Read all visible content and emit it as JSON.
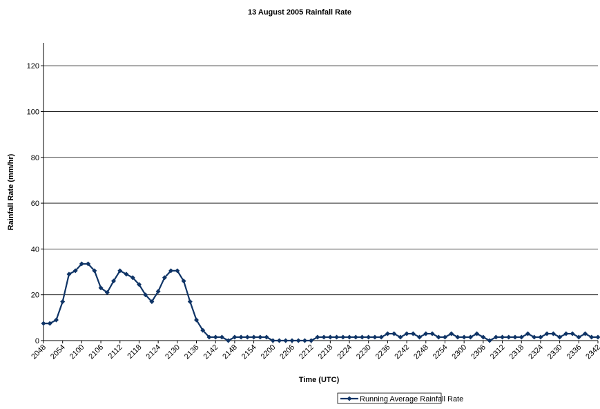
{
  "chart_data": {
    "type": "line",
    "title": "13 August 2005 Rainfall Rate",
    "x_label": "Time (UTC)",
    "y_label": "Rainfall Rate (mm/hr)",
    "categories": [
      "2048",
      null,
      null,
      "2054",
      null,
      null,
      "2100",
      null,
      null,
      "2106",
      null,
      null,
      "2112",
      null,
      null,
      "2118",
      null,
      null,
      "2124",
      null,
      null,
      "2130",
      null,
      null,
      "2136",
      null,
      null,
      "2142",
      null,
      null,
      "2148",
      null,
      null,
      "2154",
      null,
      null,
      "2200",
      null,
      null,
      "2206",
      null,
      null,
      "2212",
      null,
      null,
      "2218",
      null,
      null,
      "2224",
      null,
      null,
      "2230",
      null,
      null,
      "2236",
      null,
      null,
      "2242",
      null,
      null,
      "2248",
      null,
      null,
      "2254",
      null,
      null,
      "2300",
      null,
      null,
      "2306",
      null,
      null,
      "2312",
      null,
      null,
      "2318",
      null,
      null,
      "2324",
      null,
      null,
      "2330",
      null,
      null,
      "2336",
      null,
      null,
      "2342"
    ],
    "series": [
      {
        "name": "Running Average Rainfall Rate",
        "color": "#0f3466",
        "values": [
          7.5,
          7.5,
          9,
          17,
          29,
          30.5,
          33.5,
          33.5,
          30.5,
          23,
          21,
          26,
          30.5,
          29,
          27.5,
          24.5,
          20,
          17,
          21.5,
          27.5,
          30.5,
          30.5,
          26,
          17,
          9,
          4.5,
          1.5,
          1.5,
          1.5,
          0,
          1.5,
          1.5,
          1.5,
          1.5,
          1.5,
          1.5,
          0,
          0,
          0,
          0,
          0,
          0,
          0,
          1.5,
          1.5,
          1.5,
          1.5,
          1.5,
          1.5,
          1.5,
          1.5,
          1.5,
          1.5,
          1.5,
          3,
          3,
          1.5,
          3,
          3,
          1.5,
          3,
          3,
          1.5,
          1.5,
          3,
          1.5,
          1.5,
          1.5,
          3,
          1.5,
          0,
          1.5,
          1.5,
          1.5,
          1.5,
          1.5,
          3,
          1.5,
          1.5,
          3,
          3,
          1.5,
          3,
          3,
          1.5,
          3,
          1.5,
          1.5
        ]
      }
    ],
    "ylim": [
      0,
      130
    ],
    "yticks": [
      0,
      20,
      40,
      60,
      80,
      100,
      120
    ],
    "grid": true,
    "legend": "bottom"
  }
}
